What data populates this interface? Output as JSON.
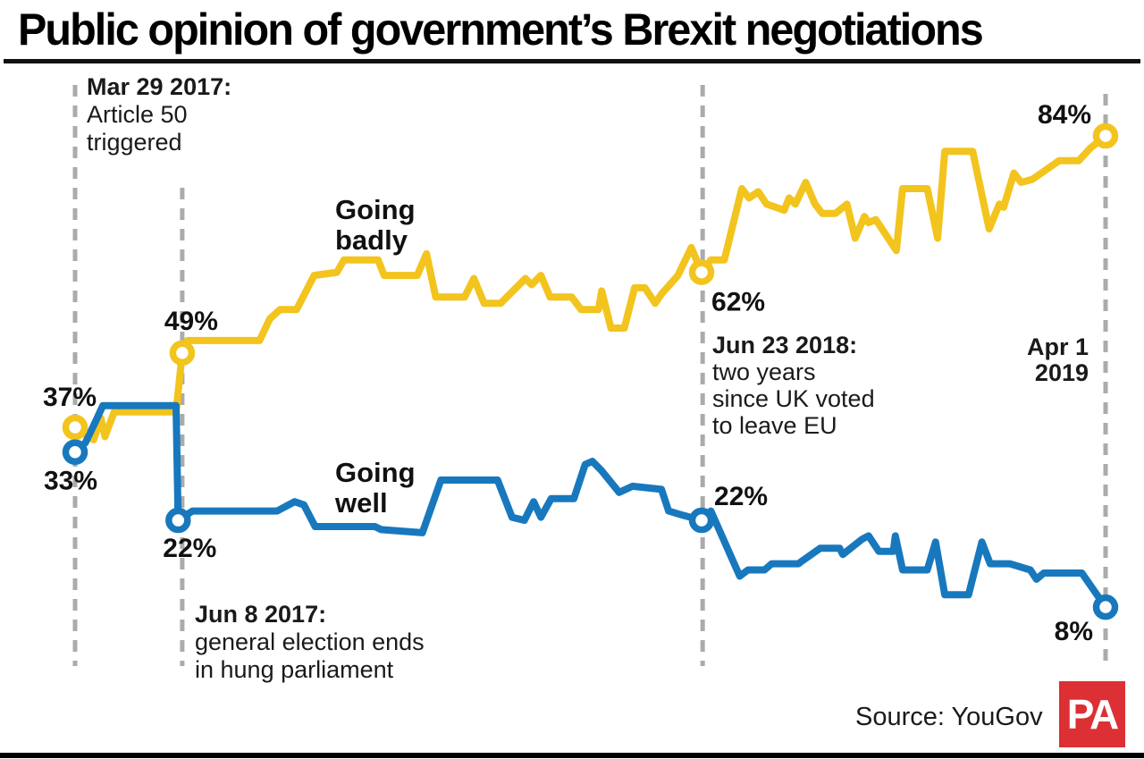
{
  "title": "Public opinion of government’s Brexit negotiations",
  "source": "Source: YouGov",
  "logo": "PA",
  "colors": {
    "badly": "#F2C41D",
    "well": "#1878BE",
    "dashed": "#ABABAB",
    "logo_red": "#DC3034",
    "text": "#1a1a1a"
  },
  "series_labels": {
    "badly_line1": "Going",
    "badly_line2": "badly",
    "well_line1": "Going",
    "well_line2": "well"
  },
  "annotations": [
    {
      "bold": "Mar 29 2017:",
      "line1": "Article 50",
      "line2": "triggered"
    },
    {
      "bold": "Jun 8 2017:",
      "line1": "general election ends",
      "line2": "in hung parliament"
    },
    {
      "bold": "Jun 23 2018:",
      "line1": "two years",
      "line2": "since UK voted",
      "line3": "to leave EU"
    },
    {
      "bold": "Apr 1",
      "line1": "2019"
    }
  ],
  "chart_data": {
    "type": "line",
    "x_range": [
      "Mar 29 2017",
      "Apr 1 2019"
    ],
    "y_unit": "percent",
    "events": [
      {
        "f": 0,
        "label": "Mar 29 2017: Article 50 triggered"
      },
      {
        "f": 0.104,
        "label": "Jun 8 2017: general election ends in hung parliament"
      },
      {
        "f": 0.609,
        "label": "Jun 23 2018: two years since UK voted to leave EU"
      },
      {
        "f": 1,
        "label": "Apr 1 2019"
      }
    ],
    "series": [
      {
        "name": "Going badly",
        "color_key": "badly",
        "points": [
          [
            0,
            37
          ],
          [
            0.018,
            35
          ],
          [
            0.025,
            38.5
          ],
          [
            0.029,
            35.5
          ],
          [
            0.038,
            39.5
          ],
          [
            0.098,
            39.5
          ],
          [
            0.104,
            49
          ],
          [
            0.109,
            51
          ],
          [
            0.179,
            51
          ],
          [
            0.189,
            54.5
          ],
          [
            0.199,
            56
          ],
          [
            0.215,
            56
          ],
          [
            0.232,
            61.5
          ],
          [
            0.254,
            62
          ],
          [
            0.261,
            64
          ],
          [
            0.294,
            64
          ],
          [
            0.3,
            61.5
          ],
          [
            0.332,
            61.5
          ],
          [
            0.341,
            65
          ],
          [
            0.35,
            58
          ],
          [
            0.378,
            58
          ],
          [
            0.387,
            61
          ],
          [
            0.397,
            57
          ],
          [
            0.413,
            57
          ],
          [
            0.419,
            58
          ],
          [
            0.437,
            61
          ],
          [
            0.443,
            60
          ],
          [
            0.452,
            61.5
          ],
          [
            0.461,
            58
          ],
          [
            0.482,
            58
          ],
          [
            0.491,
            56
          ],
          [
            0.508,
            56
          ],
          [
            0.511,
            59
          ],
          [
            0.52,
            53
          ],
          [
            0.533,
            53
          ],
          [
            0.543,
            59.5
          ],
          [
            0.553,
            59.5
          ],
          [
            0.563,
            57
          ],
          [
            0.569,
            58.5
          ],
          [
            0.585,
            61.5
          ],
          [
            0.598,
            66
          ],
          [
            0.608,
            62
          ],
          [
            0.617,
            64
          ],
          [
            0.63,
            64
          ],
          [
            0.647,
            75.5
          ],
          [
            0.654,
            74
          ],
          [
            0.663,
            75
          ],
          [
            0.671,
            73
          ],
          [
            0.68,
            72.5
          ],
          [
            0.688,
            72
          ],
          [
            0.693,
            74
          ],
          [
            0.699,
            73
          ],
          [
            0.709,
            76.5
          ],
          [
            0.718,
            73
          ],
          [
            0.725,
            71.5
          ],
          [
            0.738,
            71.5
          ],
          [
            0.749,
            73
          ],
          [
            0.757,
            67.5
          ],
          [
            0.766,
            71
          ],
          [
            0.77,
            70
          ],
          [
            0.777,
            70.5
          ],
          [
            0.797,
            65.5
          ],
          [
            0.803,
            75.5
          ],
          [
            0.827,
            75.5
          ],
          [
            0.837,
            67.5
          ],
          [
            0.844,
            81.5
          ],
          [
            0.871,
            81.5
          ],
          [
            0.887,
            69
          ],
          [
            0.897,
            73
          ],
          [
            0.901,
            72.5
          ],
          [
            0.911,
            78
          ],
          [
            0.918,
            76.5
          ],
          [
            0.929,
            77
          ],
          [
            0.955,
            80
          ],
          [
            0.974,
            80
          ],
          [
            0.985,
            82
          ],
          [
            1,
            84
          ]
        ],
        "markers": [
          {
            "f": 0,
            "v": 37,
            "label": "37%",
            "anchor": "end",
            "dx": 24,
            "dy": -24
          },
          {
            "f": 0.104,
            "v": 49,
            "label": "49%",
            "anchor": "middle",
            "dx": 10,
            "dy": -26
          },
          {
            "f": 0.608,
            "v": 62,
            "label": "62%",
            "anchor": "start",
            "dx": 11,
            "dy": 43
          },
          {
            "f": 1,
            "v": 84,
            "label": "84%",
            "anchor": "end",
            "dx": -16,
            "dy": -14
          }
        ]
      },
      {
        "name": "Going well",
        "color_key": "well",
        "points": [
          [
            0,
            33
          ],
          [
            0.01,
            34.5
          ],
          [
            0.02,
            38
          ],
          [
            0.027,
            40.5
          ],
          [
            0.098,
            40.5
          ],
          [
            0.1,
            22
          ],
          [
            0.114,
            23.5
          ],
          [
            0.196,
            23.5
          ],
          [
            0.213,
            25
          ],
          [
            0.222,
            24.5
          ],
          [
            0.233,
            21
          ],
          [
            0.291,
            21
          ],
          [
            0.297,
            20.5
          ],
          [
            0.337,
            20
          ],
          [
            0.355,
            28.5
          ],
          [
            0.41,
            28.5
          ],
          [
            0.424,
            22.5
          ],
          [
            0.436,
            22
          ],
          [
            0.445,
            25
          ],
          [
            0.452,
            22.5
          ],
          [
            0.462,
            25.5
          ],
          [
            0.484,
            25.5
          ],
          [
            0.495,
            31
          ],
          [
            0.502,
            31.5
          ],
          [
            0.511,
            30
          ],
          [
            0.528,
            26.5
          ],
          [
            0.541,
            27.5
          ],
          [
            0.569,
            27
          ],
          [
            0.576,
            23.5
          ],
          [
            0.586,
            23
          ],
          [
            0.608,
            22
          ],
          [
            0.617,
            23.5
          ],
          [
            0.645,
            13
          ],
          [
            0.653,
            14
          ],
          [
            0.669,
            14
          ],
          [
            0.676,
            15
          ],
          [
            0.702,
            15
          ],
          [
            0.706,
            15.5
          ],
          [
            0.723,
            17.5
          ],
          [
            0.742,
            17.5
          ],
          [
            0.745,
            16.5
          ],
          [
            0.764,
            19
          ],
          [
            0.77,
            19.5
          ],
          [
            0.78,
            17
          ],
          [
            0.794,
            17
          ],
          [
            0.796,
            19.5
          ],
          [
            0.803,
            14
          ],
          [
            0.827,
            14
          ],
          [
            0.835,
            18.5
          ],
          [
            0.844,
            10
          ],
          [
            0.867,
            10
          ],
          [
            0.88,
            18.5
          ],
          [
            0.888,
            15
          ],
          [
            0.907,
            15
          ],
          [
            0.927,
            14
          ],
          [
            0.933,
            12.5
          ],
          [
            0.94,
            13.5
          ],
          [
            0.977,
            13.5
          ],
          [
            1,
            8
          ]
        ],
        "markers": [
          {
            "f": 0,
            "v": 33,
            "label": "33%",
            "anchor": "end",
            "dx": 25,
            "dy": 42
          },
          {
            "f": 0.1,
            "v": 22,
            "label": "22%",
            "anchor": "middle",
            "dx": 13,
            "dy": 41
          },
          {
            "f": 0.608,
            "v": 22,
            "label": "22%",
            "anchor": "start",
            "dx": 14,
            "dy": -17
          },
          {
            "f": 1,
            "v": 8,
            "label": "8%",
            "anchor": "end",
            "dx": -14,
            "dy": 37
          }
        ]
      }
    ]
  }
}
